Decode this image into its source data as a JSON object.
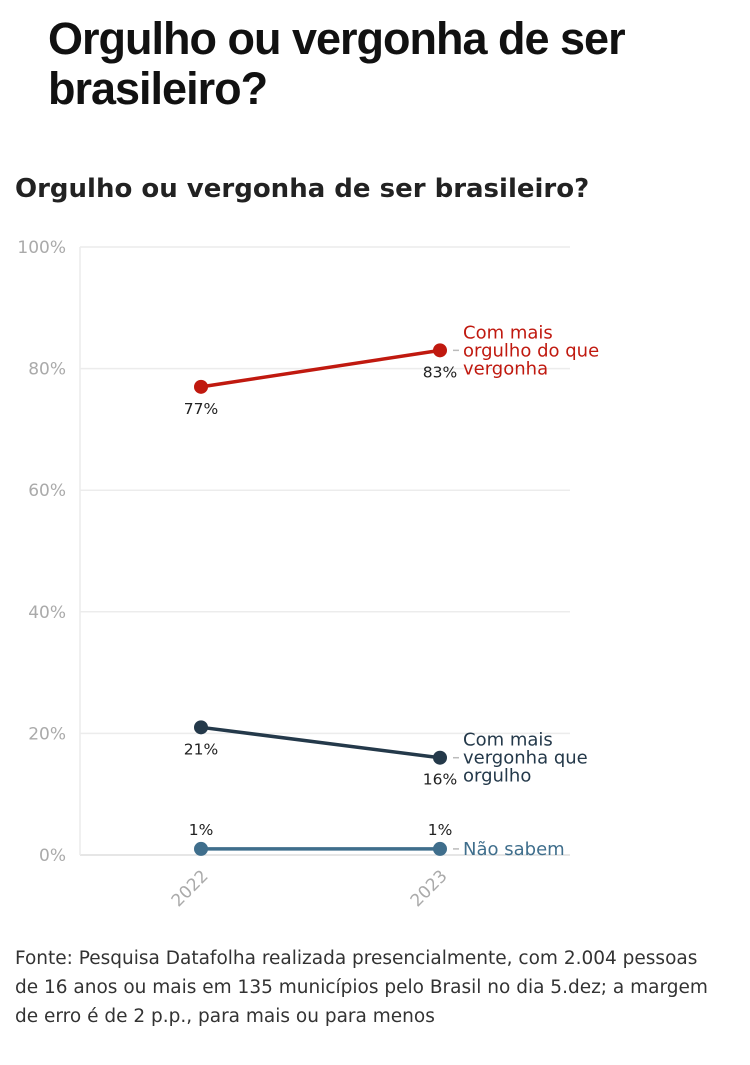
{
  "headline": "Orgulho ou vergonha de ser brasileiro?",
  "chart_data": {
    "type": "line",
    "title": "Orgulho ou vergonha de ser brasileiro?",
    "x": [
      "2022",
      "2023"
    ],
    "ylim": [
      0,
      100
    ],
    "yticks": [
      0,
      20,
      40,
      60,
      80,
      100
    ],
    "ytick_labels": [
      "0%",
      "20%",
      "40%",
      "60%",
      "80%",
      "100%"
    ],
    "grid": true,
    "series": [
      {
        "name": "Com mais orgulho do que vergonha",
        "label_lines": [
          "Com mais",
          "orgulho do que",
          "vergonha"
        ],
        "values": [
          77,
          83
        ],
        "value_labels": [
          "77%",
          "83%"
        ],
        "color": "#c0190f"
      },
      {
        "name": "Com mais vergonha que orgulho",
        "label_lines": [
          "Com mais",
          "vergonha que",
          "orgulho"
        ],
        "values": [
          21,
          16
        ],
        "value_labels": [
          "21%",
          "16%"
        ],
        "color": "#24394a"
      },
      {
        "name": "Não sabem",
        "label_lines": [
          "Não sabem"
        ],
        "values": [
          1,
          1
        ],
        "value_labels": [
          "1%",
          "1%"
        ],
        "color": "#3f6e8c"
      }
    ]
  },
  "source": "Fonte: Pesquisa Datafolha realizada presencialmente, com 2.004 pessoas de 16 anos ou mais em 135 municípios pelo Brasil no dia 5.dez; a margem de erro é de 2 p.p., para mais ou para menos"
}
